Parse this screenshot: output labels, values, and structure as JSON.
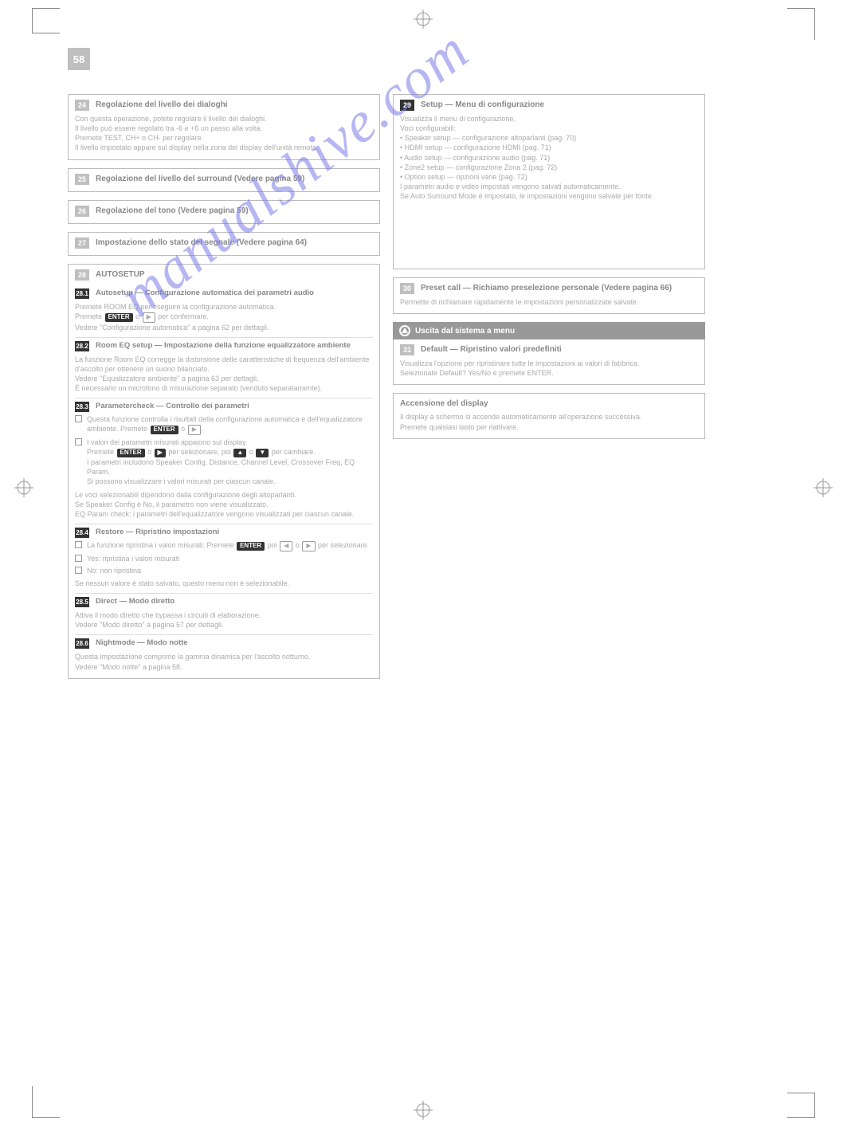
{
  "page_number": "58",
  "watermark": "manualshive.com",
  "left": {
    "box24": {
      "num": "24",
      "title": "Regolazione del livello dei dialoghi",
      "body": "Con questa operazione, potete regolare il livello dei dialoghi.\nIl livello può essere regolato tra -6 e +6 un passo alla volta.\nPremete TEST, CH+ o CH- per regolare.\nIl livello impostato appare sul display nella zona del display dell'unità remota."
    },
    "box25": {
      "num": "25",
      "title": "Regolazione del livello del surround (Vedere pagina 59)"
    },
    "box26": {
      "num": "26",
      "title": "Regolazione del tono (Vedere pagina 59)"
    },
    "box27": {
      "num": "27",
      "title": "Impostazione dello stato del segnale (Vedere pagina 64)"
    },
    "box28": {
      "num": "28",
      "title": "AUTOSETUP",
      "sections": [
        {
          "n": "28.1",
          "title": "Autosetup — Configurazione automatica dei parametri audio",
          "body": "Premete ROOM EQ per eseguire la configurazione automatica.\nPremete <btn-dark>ENTER</btn-dark> o <btn>▶</btn> per confermare.\nVedere \"Configurazione automatica\" a pagina 62 per dettagli."
        },
        {
          "n": "28.2",
          "title": "Room EQ setup — Impostazione della funzione equalizzatore ambiente",
          "body": "La funzione Room EQ corregge la distorsione delle caratteristiche di frequenza dell'ambiente d'ascolto per ottenere un suono bilanciato.\nVedere \"Equalizzatore ambiente\" a pagina 63 per dettagli.\nÈ necessario un microfono di misurazione separato (venduto separatamente)."
        },
        {
          "n": "28.3",
          "title": "Parametercheck — Controllo dei parametri",
          "bullets": [
            {
              "text": "Questa funzione controlla i risultati della configurazione automatica e dell'equalizzatore ambiente. Premete <btn-dark>ENTER</btn-dark> o <btn>▶</btn>."
            },
            {
              "text": "I valori dei parametri misurati appaiono sul display.\nPremete <btn-dark>ENTER</btn-dark> o <btn-dark>▶</btn-dark> per selezionare, poi <btn-dark>▲</btn-dark> o <btn-dark>▼</btn-dark> per cambiare.\nI parametri includono Speaker Config, Distance, Channel Level, Crossover Freq, EQ Param.\nSi possono visualizzare i valori misurati per ciascun canale."
            }
          ],
          "body": "Le voci selezionabili dipendono dalla configurazione degli altoparlanti.\nSe Speaker Config è No, il parametro non viene visualizzato.\nEQ Param check: i parametri dell'equalizzatore vengono visualizzati per ciascun canale."
        },
        {
          "n": "28.4",
          "title": "Restore — Ripristino impostazioni",
          "bullets": [
            {
              "text": "La funzione ripristina i valori misurati. Premete <btn-dark>ENTER</btn-dark> poi <btn>◀</btn> o <btn>▶</btn> per selezionare."
            },
            {
              "text": "Yes: ripristina i valori misurati"
            },
            {
              "text": "No: non ripristina"
            }
          ],
          "body": "Se nessun valore è stato salvato, questo menu non è selezionabile."
        },
        {
          "n": "28.5",
          "title": "Direct — Modo diretto",
          "body": "Attiva il modo diretto che bypassa i circuiti di elaborazione.\nVedere \"Modo diretto\" a pagina 57 per dettagli."
        },
        {
          "n": "28.6",
          "title": "Nightmode — Modo notte",
          "body": "Questa impostazione comprime la gamma dinamica per l'ascolto notturno.\nVedere \"Modo notte\" a pagina 58."
        }
      ]
    }
  },
  "right": {
    "box29": {
      "num": "29",
      "title": "Setup — Menu di configurazione",
      "body": "Visualizza il menu di configurazione.\nVoci configurabili:\n• Speaker setup — configurazione altoparlanti (pag. 70)\n• HDMI setup — configurazione HDMI (pag. 71)\n• Audio setup — configurazione audio (pag. 71)\n• Zone2 setup — configurazione Zona 2 (pag. 72)\n• Option setup — opzioni varie (pag. 72)\nI parametri audio e video impostati vengono salvati automaticamente.\nSe Auto Surround Mode è impostato, le impostazioni vengono salvate per fonte."
    },
    "box30": {
      "num": "30",
      "title": "Preset call — Richiamo preselezione personale (Vedere pagina 66)",
      "body": "Permette di richiamare rapidamente le impostazioni personalizzate salvate."
    },
    "box_help": {
      "banner": "Uscita dal sistema a menu",
      "num": "31",
      "title": "Default — Ripristino valori predefiniti",
      "body": "Visualizza l'opzione per ripristinare tutte le impostazioni ai valori di fabbrica.\nSelezionate Default? Yes/No e premete ENTER."
    },
    "box_exit": {
      "title": "Accensione del display",
      "body": "Il display a schermo si accende automaticamente all'operazione successiva.\nPremete qualsiasi tasto per riattivare."
    }
  }
}
